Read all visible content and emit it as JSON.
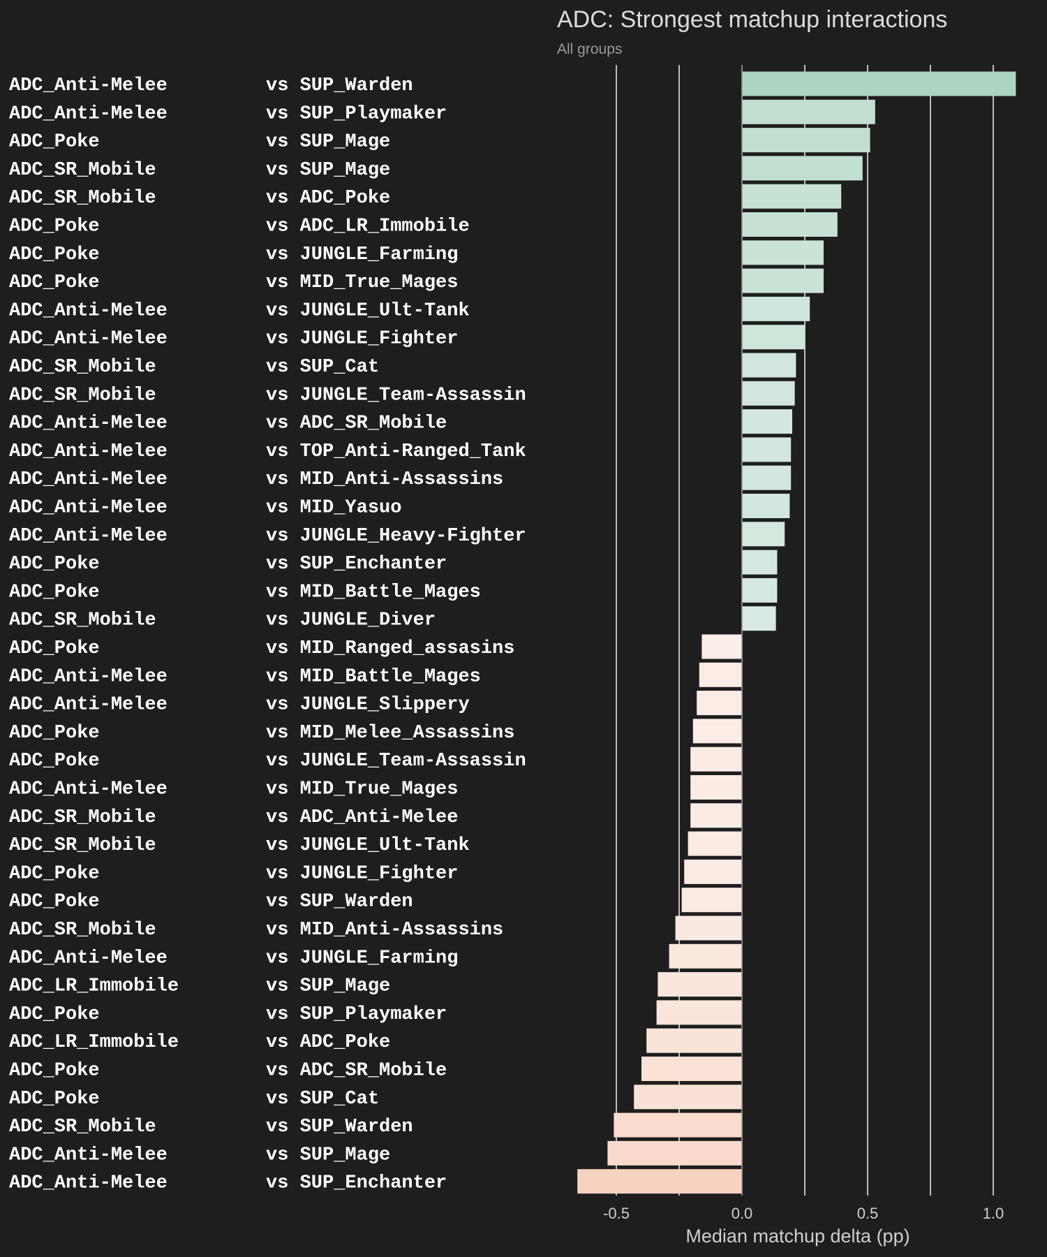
{
  "chart_data": {
    "type": "bar",
    "orientation": "horizontal",
    "title": "ADC: Strongest matchup interactions",
    "subtitle": "All groups",
    "xlabel": "Median matchup delta (pp)",
    "ylabel": "",
    "xlim": [
      -0.66,
      1.1
    ],
    "xticks": [
      -0.5,
      0.0,
      0.5,
      1.0
    ],
    "xtick_labels": [
      "-0.5",
      "0.0",
      "0.5",
      "1.0"
    ],
    "gridlines": [
      -0.5,
      -0.25,
      0.0,
      0.25,
      0.5,
      0.75,
      1.0
    ],
    "grid": true,
    "legend": "none",
    "colors": {
      "background": "#1e1e1e",
      "positive_max": "#acd6c3",
      "positive_min": "#eef3f0",
      "negative_min": "#fbf1ec",
      "negative_max": "#f8d2c1"
    },
    "bars": [
      {
        "group": "ADC_Anti-Melee",
        "opponent": "vs SUP_Warden",
        "value": 1.09
      },
      {
        "group": "ADC_Anti-Melee",
        "opponent": "vs SUP_Playmaker",
        "value": 0.53
      },
      {
        "group": "ADC_Poke",
        "opponent": "vs SUP_Mage",
        "value": 0.51
      },
      {
        "group": "ADC_SR_Mobile",
        "opponent": "vs SUP_Mage",
        "value": 0.48
      },
      {
        "group": "ADC_SR_Mobile",
        "opponent": "vs ADC_Poke",
        "value": 0.395
      },
      {
        "group": "ADC_Poke",
        "opponent": "vs ADC_LR_Immobile",
        "value": 0.38
      },
      {
        "group": "ADC_Poke",
        "opponent": "vs JUNGLE_Farming",
        "value": 0.325
      },
      {
        "group": "ADC_Poke",
        "opponent": "vs MID_True_Mages",
        "value": 0.325
      },
      {
        "group": "ADC_Anti-Melee",
        "opponent": "vs JUNGLE_Ult-Tank",
        "value": 0.27
      },
      {
        "group": "ADC_Anti-Melee",
        "opponent": "vs JUNGLE_Fighter",
        "value": 0.25
      },
      {
        "group": "ADC_SR_Mobile",
        "opponent": "vs SUP_Cat",
        "value": 0.215
      },
      {
        "group": "ADC_SR_Mobile",
        "opponent": "vs JUNGLE_Team-Assassin",
        "value": 0.21
      },
      {
        "group": "ADC_Anti-Melee",
        "opponent": "vs ADC_SR_Mobile",
        "value": 0.2
      },
      {
        "group": "ADC_Anti-Melee",
        "opponent": "vs TOP_Anti-Ranged_Tank",
        "value": 0.195
      },
      {
        "group": "ADC_Anti-Melee",
        "opponent": "vs MID_Anti-Assassins",
        "value": 0.195
      },
      {
        "group": "ADC_Anti-Melee",
        "opponent": "vs MID_Yasuo",
        "value": 0.19
      },
      {
        "group": "ADC_Anti-Melee",
        "opponent": "vs JUNGLE_Heavy-Fighter",
        "value": 0.17
      },
      {
        "group": "ADC_Poke",
        "opponent": "vs SUP_Enchanter",
        "value": 0.14
      },
      {
        "group": "ADC_Poke",
        "opponent": "vs MID_Battle_Mages",
        "value": 0.14
      },
      {
        "group": "ADC_SR_Mobile",
        "opponent": "vs JUNGLE_Diver",
        "value": 0.135
      },
      {
        "group": "ADC_Poke",
        "opponent": "vs MID_Ranged_assasins",
        "value": -0.16
      },
      {
        "group": "ADC_Anti-Melee",
        "opponent": "vs MID_Battle_Mages",
        "value": -0.17
      },
      {
        "group": "ADC_Anti-Melee",
        "opponent": "vs JUNGLE_Slippery",
        "value": -0.18
      },
      {
        "group": "ADC_Poke",
        "opponent": "vs MID_Melee_Assassins",
        "value": -0.195
      },
      {
        "group": "ADC_Poke",
        "opponent": "vs JUNGLE_Team-Assassin",
        "value": -0.205
      },
      {
        "group": "ADC_Anti-Melee",
        "opponent": "vs MID_True_Mages",
        "value": -0.205
      },
      {
        "group": "ADC_SR_Mobile",
        "opponent": "vs ADC_Anti-Melee",
        "value": -0.205
      },
      {
        "group": "ADC_SR_Mobile",
        "opponent": "vs JUNGLE_Ult-Tank",
        "value": -0.215
      },
      {
        "group": "ADC_Poke",
        "opponent": "vs JUNGLE_Fighter",
        "value": -0.23
      },
      {
        "group": "ADC_Poke",
        "opponent": "vs SUP_Warden",
        "value": -0.24
      },
      {
        "group": "ADC_SR_Mobile",
        "opponent": "vs MID_Anti-Assassins",
        "value": -0.265
      },
      {
        "group": "ADC_Anti-Melee",
        "opponent": "vs JUNGLE_Farming",
        "value": -0.29
      },
      {
        "group": "ADC_LR_Immobile",
        "opponent": "vs SUP_Mage",
        "value": -0.335
      },
      {
        "group": "ADC_Poke",
        "opponent": "vs SUP_Playmaker",
        "value": -0.34
      },
      {
        "group": "ADC_LR_Immobile",
        "opponent": "vs ADC_Poke",
        "value": -0.38
      },
      {
        "group": "ADC_Poke",
        "opponent": "vs ADC_SR_Mobile",
        "value": -0.4
      },
      {
        "group": "ADC_Poke",
        "opponent": "vs SUP_Cat",
        "value": -0.43
      },
      {
        "group": "ADC_SR_Mobile",
        "opponent": "vs SUP_Warden",
        "value": -0.51
      },
      {
        "group": "ADC_Anti-Melee",
        "opponent": "vs SUP_Mage",
        "value": -0.535
      },
      {
        "group": "ADC_Anti-Melee",
        "opponent": "vs SUP_Enchanter",
        "value": -0.655
      }
    ]
  }
}
